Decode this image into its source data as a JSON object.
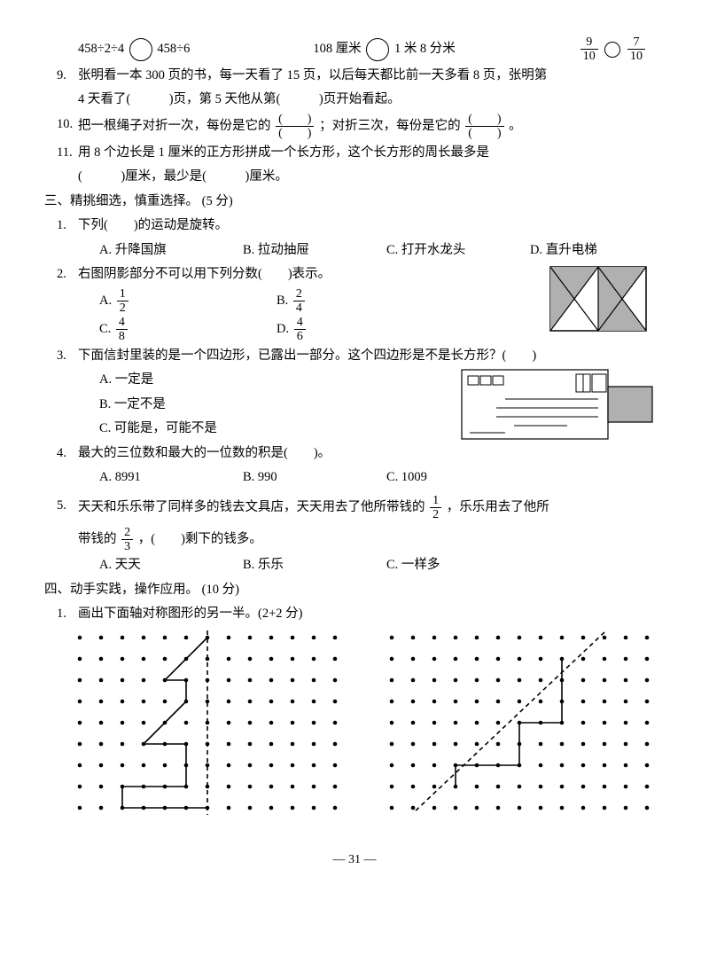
{
  "line8": {
    "expr1a": "458÷2÷4",
    "expr1b": "458÷6",
    "expr2a": "108 厘米",
    "expr2b": "1 米 8 分米",
    "frac1_num": "9",
    "frac1_den": "10",
    "frac2_num": "7",
    "frac2_den": "10"
  },
  "q9": {
    "num": "9.",
    "text1": "张明看一本 300 页的书，每一天看了 15 页，以后每天都比前一天多看 8 页，张明第",
    "text2": "4 天看了(　　　)页，第 5 天他从第(　　　)页开始看起。"
  },
  "q10": {
    "num": "10.",
    "text1": "把一根绳子对折一次，每份是它的",
    "text2": "；对折三次，每份是它的",
    "text3": "。",
    "blank_num": "(　　)",
    "blank_den": "(　　)"
  },
  "q11": {
    "num": "11.",
    "text1": "用 8 个边长是 1 厘米的正方形拼成一个长方形，这个长方形的周长最多是",
    "text2": "(　　　)厘米，最少是(　　　)厘米。"
  },
  "sec3": {
    "title": "三、精挑细选，慎重选择。",
    "pts": "(5 分)"
  },
  "s3q1": {
    "num": "1.",
    "stem": "下列(　　)的运动是旋转。",
    "A": "A. 升降国旗",
    "B": "B. 拉动抽屉",
    "C": "C. 打开水龙头",
    "D": "D. 直升电梯"
  },
  "s3q2": {
    "num": "2.",
    "stem": "右图阴影部分不可以用下列分数(　　)表示。",
    "A": "A.",
    "B": "B.",
    "C": "C.",
    "D": "D.",
    "fA_n": "1",
    "fA_d": "2",
    "fB_n": "2",
    "fB_d": "4",
    "fC_n": "4",
    "fC_d": "8",
    "fD_n": "4",
    "fD_d": "6",
    "fig_colors": {
      "shade": "#b0b0b0",
      "line": "#000"
    }
  },
  "s3q3": {
    "num": "3.",
    "stem": "下面信封里装的是一个四边形，已露出一部分。这个四边形是不是长方形？(　　)",
    "A": "A. 一定是",
    "B": "B. 一定不是",
    "C": "C. 可能是，可能不是"
  },
  "s3q4": {
    "num": "4.",
    "stem": "最大的三位数和最大的一位数的积是(　　)。",
    "A": "A. 8991",
    "B": "B. 990",
    "C": "C. 1009"
  },
  "s3q5": {
    "num": "5.",
    "stem1": "天天和乐乐带了同样多的钱去文具店，天天用去了他所带钱的",
    "stem2": "，乐乐用去了他所",
    "stem3": "带钱的",
    "stem4": "，(　　)剩下的钱多。",
    "f1_n": "1",
    "f1_d": "2",
    "f2_n": "2",
    "f2_d": "3",
    "A": "A. 天天",
    "B": "B. 乐乐",
    "C": "C. 一样多"
  },
  "sec4": {
    "title": "四、动手实践，操作应用。",
    "pts": "(10 分)"
  },
  "s4q1": {
    "num": "1.",
    "stem": "画出下面轴对称图形的另一半。(2+2 分)"
  },
  "dotgrid": {
    "rows": 9,
    "cols1": 13,
    "cols2": 13,
    "spacing": 24,
    "dot_color": "#000",
    "line_color": "#000",
    "dash_color": "#000"
  },
  "pagenum": "— 31 —",
  "period_mark": "。"
}
